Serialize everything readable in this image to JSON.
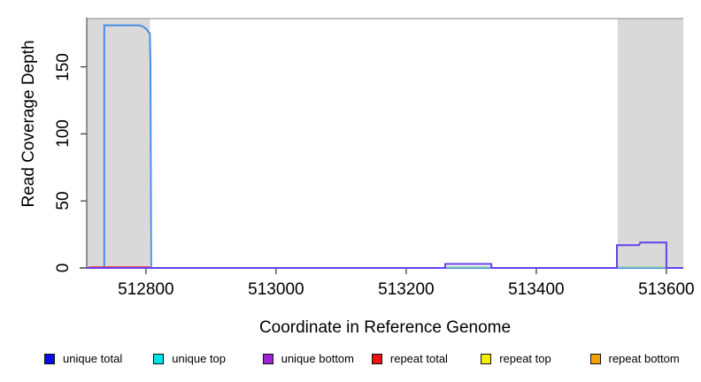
{
  "figure": {
    "xlabel": "Coordinate in Reference Genome",
    "ylabel": "Read Coverage Depth"
  },
  "legend": {
    "items": [
      {
        "label": "unique total",
        "color": "#0a0aee"
      },
      {
        "label": "unique top",
        "color": "#00e0ee"
      },
      {
        "label": "unique bottom",
        "color": "#9b23d4"
      },
      {
        "label": "repeat total",
        "color": "#ee1111"
      },
      {
        "label": "repeat top",
        "color": "#f2ee00"
      },
      {
        "label": "repeat bottom",
        "color": "#f0a202"
      }
    ]
  },
  "chart_data": {
    "type": "line",
    "title": "",
    "xlabel": "Coordinate in Reference Genome",
    "ylabel": "Read Coverage Depth",
    "xlim": [
      512709,
      513626
    ],
    "ylim": [
      0,
      186
    ],
    "xticks": [
      512800,
      513000,
      513200,
      513400,
      513600
    ],
    "yticks": [
      0,
      50,
      100,
      150
    ],
    "grid": false,
    "legend_position": "bottom",
    "background_shading": [
      {
        "name": "left-shaded-region",
        "x_start": 512709,
        "x_end": 512806,
        "color": "#d9d9d9"
      },
      {
        "name": "right-shaded-region",
        "x_start": 513525,
        "x_end": 513626,
        "color": "#d9d9d9"
      }
    ],
    "top_border_color": "#9a9a9a",
    "series": [
      {
        "name": "unique total",
        "display_color": "#4a8ce8",
        "line_width": 2,
        "segments": [
          [
            [
              512709,
              0
            ],
            [
              512736,
              0
            ],
            [
              512736,
              181
            ],
            [
              512789,
              181
            ],
            [
              512796,
              180
            ],
            [
              512801,
              178
            ],
            [
              512804,
              176
            ],
            [
              512806,
              175
            ],
            [
              512807,
              152
            ],
            [
              512808,
              0
            ],
            [
              513626,
              0
            ]
          ]
        ]
      },
      {
        "name": "repeat total",
        "display_color": "#f25555",
        "line_width": 1.5,
        "segments": [
          [
            [
              512712,
              0.8
            ],
            [
              512806,
              0.8
            ]
          ]
        ]
      },
      {
        "name": "unique top",
        "display_color": "#9dd89d",
        "line_width": 1.5,
        "segments": [
          [
            [
              513262,
              0.7
            ],
            [
              513331,
              0.7
            ]
          ],
          [
            [
              513525,
              0.7
            ],
            [
              513599,
              0.7
            ]
          ]
        ]
      },
      {
        "name": "unique bottom",
        "display_color": "#6640ee",
        "line_width": 2,
        "segments": [
          [
            [
              512709,
              0
            ],
            [
              513260,
              0
            ],
            [
              513260,
              3
            ],
            [
              513331,
              3
            ],
            [
              513331,
              0
            ],
            [
              513524,
              0
            ],
            [
              513524,
              17
            ],
            [
              513558,
              17
            ],
            [
              513560,
              19
            ],
            [
              513600,
              19
            ],
            [
              513600,
              0
            ],
            [
              513626,
              0
            ]
          ]
        ]
      }
    ]
  }
}
